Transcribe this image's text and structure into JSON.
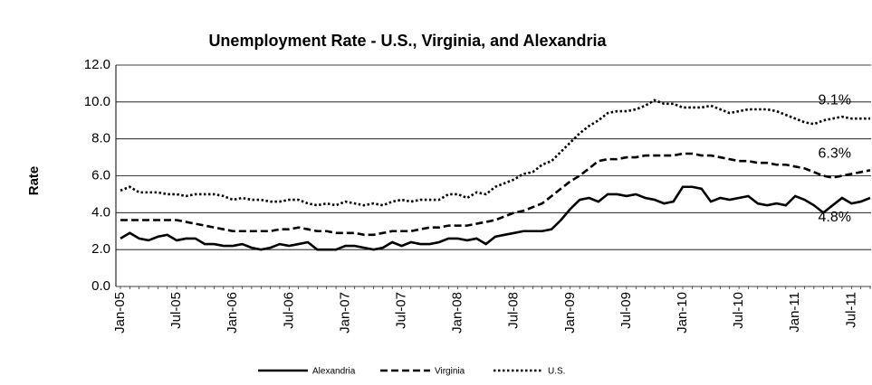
{
  "chart_data": {
    "type": "line",
    "title": "Unemployment Rate - U.S., Virginia, and Alexandria",
    "y_label": "Rate",
    "categories": [
      "Jan-05",
      null,
      null,
      null,
      null,
      null,
      "Jul-05",
      null,
      null,
      null,
      null,
      null,
      "Jan-06",
      null,
      null,
      null,
      null,
      null,
      "Jul-06",
      null,
      null,
      null,
      null,
      null,
      "Jan-07",
      null,
      null,
      null,
      null,
      null,
      "Jul-07",
      null,
      null,
      null,
      null,
      null,
      "Jan-08",
      null,
      null,
      null,
      null,
      null,
      "Jul-08",
      null,
      null,
      null,
      null,
      null,
      "Jan-09",
      null,
      null,
      null,
      null,
      null,
      "Jul-09",
      null,
      null,
      null,
      null,
      null,
      "Jan-10",
      null,
      null,
      null,
      null,
      null,
      "Jul-10",
      null,
      null,
      null,
      null,
      null,
      "Jan-11",
      null,
      null,
      null,
      null,
      null,
      "Jul-11",
      null,
      null
    ],
    "ylim": [
      0,
      12
    ],
    "yticks": [
      {
        "value": 0,
        "label": "0.0"
      },
      {
        "value": 2,
        "label": "2.0"
      },
      {
        "value": 4,
        "label": "4.0"
      },
      {
        "value": 6,
        "label": "6.0"
      },
      {
        "value": 8,
        "label": "8.0"
      },
      {
        "value": 10,
        "label": "10.0"
      },
      {
        "value": 12,
        "label": "12.0"
      }
    ],
    "grid": true,
    "legend": "bottom",
    "series": [
      {
        "name": "Alexandria",
        "color": "#000000",
        "dash": "solid",
        "end_label": "4.8%",
        "values": [
          2.6,
          2.9,
          2.6,
          2.5,
          2.7,
          2.8,
          2.5,
          2.6,
          2.6,
          2.3,
          2.3,
          2.2,
          2.2,
          2.3,
          2.1,
          2.0,
          2.1,
          2.3,
          2.2,
          2.3,
          2.4,
          2.0,
          2.0,
          2.0,
          2.2,
          2.2,
          2.1,
          2.0,
          2.1,
          2.4,
          2.2,
          2.4,
          2.3,
          2.3,
          2.4,
          2.6,
          2.6,
          2.5,
          2.6,
          2.3,
          2.7,
          2.8,
          2.9,
          3.0,
          3.0,
          3.0,
          3.1,
          3.6,
          4.2,
          4.7,
          4.8,
          4.6,
          5.0,
          5.0,
          4.9,
          5.0,
          4.8,
          4.7,
          4.5,
          4.6,
          5.4,
          5.4,
          5.3,
          4.6,
          4.8,
          4.7,
          4.8,
          4.9,
          4.5,
          4.4,
          4.5,
          4.4,
          4.9,
          4.7,
          4.4,
          4.0,
          4.4,
          4.8,
          4.5,
          4.6,
          4.8
        ]
      },
      {
        "name": "Virginia",
        "color": "#000000",
        "dash": "dashed",
        "end_label": "6.3%",
        "values": [
          3.6,
          3.6,
          3.6,
          3.6,
          3.6,
          3.6,
          3.6,
          3.5,
          3.4,
          3.3,
          3.2,
          3.1,
          3.0,
          3.0,
          3.0,
          3.0,
          3.0,
          3.1,
          3.1,
          3.2,
          3.1,
          3.0,
          3.0,
          2.9,
          2.9,
          2.9,
          2.8,
          2.8,
          2.9,
          3.0,
          3.0,
          3.0,
          3.1,
          3.2,
          3.2,
          3.3,
          3.3,
          3.3,
          3.4,
          3.5,
          3.6,
          3.8,
          4.0,
          4.1,
          4.3,
          4.5,
          4.9,
          5.3,
          5.7,
          6.0,
          6.4,
          6.8,
          6.9,
          6.9,
          7.0,
          7.0,
          7.1,
          7.1,
          7.1,
          7.1,
          7.2,
          7.2,
          7.1,
          7.1,
          7.0,
          6.9,
          6.8,
          6.8,
          6.7,
          6.7,
          6.6,
          6.6,
          6.5,
          6.4,
          6.2,
          6.0,
          5.9,
          6.0,
          6.1,
          6.2,
          6.3
        ]
      },
      {
        "name": "U.S.",
        "color": "#000000",
        "dash": "dotted",
        "end_label": "9.1%",
        "values": [
          5.2,
          5.4,
          5.1,
          5.1,
          5.1,
          5.0,
          5.0,
          4.9,
          5.0,
          5.0,
          5.0,
          4.9,
          4.7,
          4.8,
          4.7,
          4.7,
          4.6,
          4.6,
          4.7,
          4.7,
          4.5,
          4.4,
          4.5,
          4.4,
          4.6,
          4.5,
          4.4,
          4.5,
          4.4,
          4.6,
          4.7,
          4.6,
          4.7,
          4.7,
          4.7,
          5.0,
          5.0,
          4.8,
          5.1,
          5.0,
          5.4,
          5.6,
          5.8,
          6.1,
          6.2,
          6.6,
          6.8,
          7.3,
          7.8,
          8.3,
          8.7,
          9.0,
          9.4,
          9.5,
          9.5,
          9.6,
          9.8,
          10.1,
          9.9,
          9.9,
          9.7,
          9.7,
          9.7,
          9.8,
          9.6,
          9.4,
          9.5,
          9.6,
          9.6,
          9.6,
          9.5,
          9.3,
          9.1,
          8.9,
          8.8,
          9.0,
          9.1,
          9.2,
          9.1,
          9.1,
          9.1
        ]
      }
    ]
  }
}
